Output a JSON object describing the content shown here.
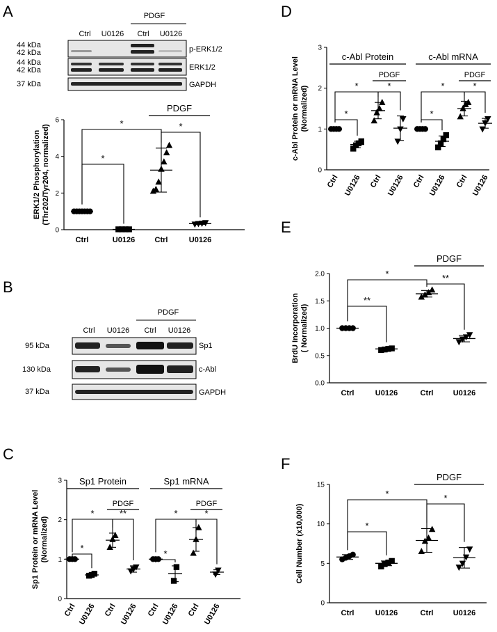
{
  "panel_letters": [
    "A",
    "B",
    "C",
    "D",
    "E",
    "F"
  ],
  "pdgf": "PDGF",
  "star": "*",
  "dstar": "**",
  "blot_a": {
    "lanes": [
      "Ctrl",
      "U0126",
      "Ctrl",
      "U0126"
    ],
    "rows": [
      {
        "markers": [
          "44 kDa",
          "42 kDa"
        ],
        "label": "p-ERK1/2"
      },
      {
        "markers": [
          "44 kDa",
          "42 kDa"
        ],
        "label": "ERK1/2"
      },
      {
        "markers": [
          "37 kDa"
        ],
        "label": "GAPDH"
      }
    ]
  },
  "blot_b": {
    "lanes": [
      "Ctrl",
      "U0126",
      "Ctrl",
      "U0126"
    ],
    "rows": [
      {
        "marker": "95 kDa",
        "label": "Sp1"
      },
      {
        "marker": "130 kDa",
        "label": "c-Abl"
      },
      {
        "marker": "37 kDa",
        "label": "GAPDH"
      }
    ]
  },
  "chart_data": [
    {
      "panel": "A",
      "type": "scatter",
      "ylabel": [
        "ERK1/2 Phosphorylation",
        "(Thr202/Tyr204, normalized)"
      ],
      "ylim": [
        0,
        6
      ],
      "yticks": [
        0,
        2,
        4,
        6
      ],
      "categories": [
        "Ctrl",
        "U0126",
        "Ctrl",
        "U0126"
      ],
      "groups": [
        {
          "marker": "circle",
          "points": [
            1,
            1,
            1,
            1,
            1,
            1,
            1
          ],
          "mean": 1,
          "sd": 0
        },
        {
          "marker": "square",
          "points": [
            0.02,
            0.02,
            0.02,
            0.02
          ],
          "mean": 0.02,
          "sd": 0
        },
        {
          "marker": "triangle",
          "points": [
            2.1,
            2.2,
            2.6,
            3.3,
            3.7,
            4.2,
            4.6
          ],
          "mean": 3.25,
          "sd": 1.2
        },
        {
          "marker": "triangle-down",
          "points": [
            0.3,
            0.33,
            0.35,
            0.38
          ],
          "mean": 0.33,
          "sd": 0.04
        }
      ],
      "group_label": "PDGF"
    },
    {
      "panel": "C",
      "type": "scatter",
      "ylabel": [
        "Sp1 Protein or mRNA Level",
        "(Normalized)"
      ],
      "ylim": [
        0,
        3
      ],
      "yticks": [
        0,
        1,
        2,
        3
      ],
      "categories": [
        "Ctrl",
        "U0126",
        "Ctrl",
        "U0126",
        "Ctrl",
        "U0126",
        "Ctrl",
        "U0126"
      ],
      "section_labels": [
        "Sp1 Protein",
        "Sp1 mRNA"
      ],
      "groups": [
        {
          "marker": "circle",
          "points": [
            1,
            1,
            1
          ],
          "mean": 1,
          "sd": 0
        },
        {
          "marker": "square",
          "points": [
            0.58,
            0.6,
            0.63
          ],
          "mean": 0.6,
          "sd": 0.03
        },
        {
          "marker": "triangle",
          "points": [
            1.3,
            1.5,
            1.6
          ],
          "mean": 1.48,
          "sd": 0.18
        },
        {
          "marker": "triangle-down",
          "points": [
            0.7,
            0.75,
            0.8
          ],
          "mean": 0.75,
          "sd": 0.08
        },
        {
          "marker": "circle",
          "points": [
            1,
            1,
            1
          ],
          "mean": 1,
          "sd": 0
        },
        {
          "marker": "square",
          "points": [
            0.45,
            0.8
          ],
          "mean": 0.63,
          "sd": 0.2
        },
        {
          "marker": "triangle",
          "points": [
            1.15,
            1.5,
            1.8
          ],
          "mean": 1.5,
          "sd": 0.3
        },
        {
          "marker": "triangle-down",
          "points": [
            0.62,
            0.72
          ],
          "mean": 0.67,
          "sd": 0.06
        }
      ],
      "group_label": "PDGF"
    },
    {
      "panel": "D",
      "type": "scatter",
      "ylabel": [
        "c-Abl Protein or mRNA Level",
        "(Normalized)"
      ],
      "ylim": [
        0,
        3
      ],
      "yticks": [
        0,
        1,
        2,
        3
      ],
      "categories": [
        "Ctrl",
        "U0126",
        "Ctrl",
        "U0126",
        "Ctrl",
        "U0126",
        "Ctrl",
        "U0126"
      ],
      "section_labels": [
        "c-Abl Protein",
        "c-Abl mRNA"
      ],
      "groups": [
        {
          "marker": "circle",
          "points": [
            1,
            1,
            1,
            1
          ],
          "mean": 1,
          "sd": 0
        },
        {
          "marker": "square",
          "points": [
            0.52,
            0.6,
            0.65,
            0.7
          ],
          "mean": 0.62,
          "sd": 0.08
        },
        {
          "marker": "triangle",
          "points": [
            1.2,
            1.4,
            1.5,
            1.65
          ],
          "mean": 1.45,
          "sd": 0.2
        },
        {
          "marker": "triangle-down",
          "points": [
            0.7,
            1.0,
            1.25
          ],
          "mean": 1.02,
          "sd": 0.3
        },
        {
          "marker": "circle",
          "points": [
            1,
            1,
            1,
            1
          ],
          "mean": 1,
          "sd": 0
        },
        {
          "marker": "square",
          "points": [
            0.55,
            0.65,
            0.75,
            0.85
          ],
          "mean": 0.7,
          "sd": 0.13
        },
        {
          "marker": "triangle",
          "points": [
            1.3,
            1.5,
            1.6,
            1.65
          ],
          "mean": 1.5,
          "sd": 0.18
        },
        {
          "marker": "triangle-down",
          "points": [
            1.0,
            1.15,
            1.25
          ],
          "mean": 1.14,
          "sd": 0.12
        }
      ],
      "group_label": "PDGF"
    },
    {
      "panel": "E",
      "type": "scatter",
      "ylabel": [
        "BrdU Incorporation",
        "( Normalized)"
      ],
      "ylim": [
        0,
        2.0
      ],
      "yticks": [
        0.0,
        0.5,
        1.0,
        1.5,
        2.0
      ],
      "categories": [
        "Ctrl",
        "U0126",
        "Ctrl",
        "U0126"
      ],
      "groups": [
        {
          "marker": "circle",
          "points": [
            1,
            1,
            1,
            1
          ],
          "mean": 1,
          "sd": 0
        },
        {
          "marker": "square",
          "points": [
            0.6,
            0.61,
            0.62,
            0.63
          ],
          "mean": 0.62,
          "sd": 0.02
        },
        {
          "marker": "triangle",
          "points": [
            1.57,
            1.61,
            1.65,
            1.7
          ],
          "mean": 1.63,
          "sd": 0.06
        },
        {
          "marker": "triangle-down",
          "points": [
            0.75,
            0.8,
            0.84,
            0.88
          ],
          "mean": 0.81,
          "sd": 0.06
        }
      ],
      "group_label": "PDGF"
    },
    {
      "panel": "F",
      "type": "scatter",
      "ylabel": [
        "Cell Number (x10,000)"
      ],
      "ylim": [
        0,
        15
      ],
      "yticks": [
        0,
        5,
        10,
        15
      ],
      "categories": [
        "Ctrl",
        "U0126",
        "Ctrl",
        "U0126"
      ],
      "groups": [
        {
          "marker": "circle",
          "points": [
            5.5,
            5.7,
            5.9,
            6.1
          ],
          "mean": 5.8,
          "sd": 0.3
        },
        {
          "marker": "square",
          "points": [
            4.6,
            4.9,
            5.1,
            5.3
          ],
          "mean": 5.0,
          "sd": 0.3
        },
        {
          "marker": "triangle",
          "points": [
            6.5,
            7.8,
            8.2,
            9.3
          ],
          "mean": 7.9,
          "sd": 1.5
        },
        {
          "marker": "triangle-down",
          "points": [
            4.5,
            5.0,
            5.8,
            6.8
          ],
          "mean": 5.7,
          "sd": 1.3
        }
      ],
      "group_label": "PDGF"
    }
  ]
}
